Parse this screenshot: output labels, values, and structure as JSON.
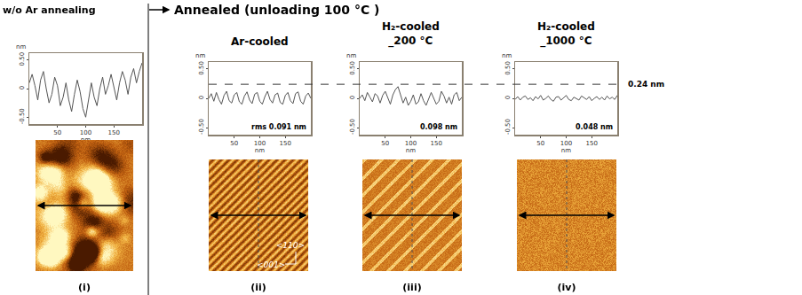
{
  "figure": {
    "header_left": "w/o Ar annealing",
    "header_right": "Annealed (unloading 100 °C )",
    "reference_line": {
      "y": 0.24,
      "label": "0.24 nm"
    }
  },
  "chart_data": [
    {
      "type": "line",
      "caption": "(i)",
      "x_label": "nm",
      "y_label": "nm",
      "color": "#555555",
      "grid": false,
      "xlim": [
        0,
        200
      ],
      "xticks": [
        50,
        100,
        150
      ],
      "ylim": [
        -0.62,
        0.62
      ],
      "yticks": [
        {
          "value": -0.5,
          "label": "-0.50"
        },
        0,
        {
          "value": 0.5,
          "label": "0.50"
        }
      ],
      "x": [
        0,
        5,
        10,
        15,
        20,
        25,
        30,
        35,
        40,
        45,
        50,
        55,
        60,
        65,
        70,
        75,
        80,
        85,
        90,
        95,
        100,
        105,
        110,
        115,
        120,
        125,
        130,
        135,
        140,
        145,
        150,
        155,
        160,
        165,
        170,
        175,
        180,
        185,
        190,
        195,
        200
      ],
      "values": [
        0.1,
        0.25,
        0.05,
        -0.2,
        0.15,
        0.3,
        0.0,
        -0.25,
        -0.1,
        0.2,
        0.05,
        -0.3,
        -0.15,
        0.1,
        -0.2,
        -0.4,
        -0.1,
        0.15,
        -0.05,
        -0.35,
        -0.5,
        -0.2,
        0.1,
        -0.15,
        -0.3,
        0.0,
        0.2,
        -0.1,
        0.05,
        0.25,
        0.0,
        -0.2,
        0.1,
        0.3,
        0.15,
        -0.1,
        0.2,
        0.35,
        0.1,
        0.3,
        0.45
      ]
    },
    {
      "type": "line",
      "title": [
        "Ar-cooled"
      ],
      "caption": "(ii)",
      "x_label": "nm",
      "y_label": "nm",
      "color": "#555555",
      "grid": false,
      "annotations": [
        {
          "text": "rms 0.091 nm"
        }
      ],
      "image_labels": [
        "<110>",
        "<001>"
      ],
      "xlim": [
        0,
        200
      ],
      "xticks": [
        50,
        100,
        150
      ],
      "ylim": [
        -0.62,
        0.62
      ],
      "yticks": [
        {
          "value": -0.5,
          "label": "-0.50"
        },
        0,
        {
          "value": 0.5,
          "label": "0.50"
        }
      ],
      "x": [
        0,
        5,
        10,
        15,
        20,
        25,
        30,
        35,
        40,
        45,
        50,
        55,
        60,
        65,
        70,
        75,
        80,
        85,
        90,
        95,
        100,
        105,
        110,
        115,
        120,
        125,
        130,
        135,
        140,
        145,
        150,
        155,
        160,
        165,
        170,
        175,
        180,
        185,
        190,
        195,
        200
      ],
      "values": [
        0.0,
        0.08,
        -0.05,
        0.1,
        -0.02,
        -0.1,
        0.05,
        0.12,
        -0.04,
        -0.08,
        0.06,
        0.1,
        -0.06,
        -0.1,
        0.04,
        0.11,
        -0.03,
        -0.09,
        0.07,
        0.1,
        -0.05,
        -0.1,
        0.03,
        0.12,
        -0.02,
        -0.08,
        0.06,
        0.09,
        -0.07,
        -0.1,
        0.05,
        0.1,
        -0.04,
        -0.09,
        0.08,
        0.11,
        -0.05,
        -0.1,
        0.04,
        0.09,
        0.0
      ]
    },
    {
      "type": "line",
      "title": [
        "H₂-cooled",
        "_200 °C"
      ],
      "caption": "(iii)",
      "x_label": "nm",
      "y_label": "nm",
      "color": "#555555",
      "grid": false,
      "annotations": [
        {
          "text": "0.098 nm"
        }
      ],
      "xlim": [
        0,
        200
      ],
      "xticks": [
        50,
        100,
        150
      ],
      "ylim": [
        -0.62,
        0.62
      ],
      "yticks": [
        {
          "value": -0.5,
          "label": "-0.50"
        },
        0,
        {
          "value": 0.5,
          "label": "0.50"
        }
      ],
      "x": [
        0,
        5,
        10,
        15,
        20,
        25,
        30,
        35,
        40,
        45,
        50,
        55,
        60,
        65,
        70,
        75,
        80,
        85,
        90,
        95,
        100,
        105,
        110,
        115,
        120,
        125,
        130,
        135,
        140,
        145,
        150,
        155,
        160,
        165,
        170,
        175,
        180,
        185,
        190,
        195,
        200
      ],
      "values": [
        0.0,
        0.06,
        -0.04,
        0.1,
        0.02,
        -0.06,
        0.08,
        0.04,
        -0.08,
        0.05,
        0.12,
        0.0,
        -0.1,
        0.06,
        0.15,
        0.2,
        0.05,
        -0.08,
        0.02,
        -0.12,
        -0.05,
        0.06,
        -0.1,
        -0.06,
        0.08,
        -0.04,
        -0.12,
        -0.02,
        0.1,
        0.0,
        -0.1,
        -0.05,
        0.12,
        0.04,
        -0.08,
        0.02,
        -0.1,
        0.06,
        0.1,
        -0.04,
        0.02
      ]
    },
    {
      "type": "line",
      "title": [
        "H₂-cooled",
        "_1000 °C"
      ],
      "caption": "(iv)",
      "x_label": "nm",
      "y_label": "nm",
      "color": "#555555",
      "grid": false,
      "annotations": [
        {
          "text": "0.048 nm"
        }
      ],
      "xlim": [
        0,
        200
      ],
      "xticks": [
        50,
        100,
        150
      ],
      "ylim": [
        -0.62,
        0.62
      ],
      "yticks": [
        {
          "value": -0.5,
          "label": "-0.50"
        },
        0,
        {
          "value": 0.5,
          "label": "0.50"
        }
      ],
      "x": [
        0,
        5,
        10,
        15,
        20,
        25,
        30,
        35,
        40,
        45,
        50,
        55,
        60,
        65,
        70,
        75,
        80,
        85,
        90,
        95,
        100,
        105,
        110,
        115,
        120,
        125,
        130,
        135,
        140,
        145,
        150,
        155,
        160,
        165,
        170,
        175,
        180,
        185,
        190,
        195,
        200
      ],
      "values": [
        -0.02,
        0.03,
        -0.03,
        0.02,
        0.04,
        -0.02,
        0.01,
        -0.04,
        0.03,
        -0.01,
        0.05,
        -0.03,
        0.0,
        0.04,
        -0.02,
        -0.05,
        0.02,
        0.03,
        -0.03,
        0.01,
        0.05,
        -0.02,
        -0.04,
        0.02,
        0.0,
        -0.03,
        0.04,
        0.01,
        -0.02,
        0.03,
        -0.04,
        0.0,
        0.03,
        -0.02,
        0.02,
        -0.03,
        0.04,
        -0.01,
        0.02,
        -0.02,
        0.05
      ]
    }
  ]
}
